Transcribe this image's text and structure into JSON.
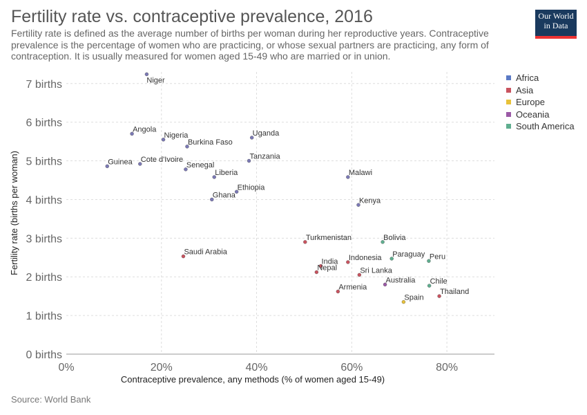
{
  "header": {
    "title": "Fertility rate vs. contraceptive prevalence, 2016",
    "subtitle": "Fertility rate is defined as the average number of births per woman during her reproductive years. Contraceptive prevalence is the percentage of women who are practicing, or whose sexual partners are practicing, any form of contraception. It is usually measured for women aged 15-49 who are married or in union.",
    "logo_line1": "Our World",
    "logo_line2": "in Data"
  },
  "footer": {
    "source": "Source: World Bank"
  },
  "colors": {
    "Africa": "#5b7ac5",
    "Asia": "#c9535f",
    "Europe": "#e8c23a",
    "Oceania": "#9b5aa6",
    "South America": "#5fae8f",
    "point_fill_Africa": "#7b79b5",
    "logo_bg": "#1a3a5e",
    "logo_accent": "#e33333",
    "grid": "#dddddd"
  },
  "chart_data": {
    "type": "scatter",
    "title": "Fertility rate vs. contraceptive prevalence, 2016",
    "xlabel": "Contraceptive prevalence, any methods (% of women aged 15-49)",
    "ylabel": "Fertility rate (births per woman)",
    "xlim": [
      0,
      90
    ],
    "ylim": [
      0,
      7.3
    ],
    "x_ticks": [
      0,
      20,
      40,
      60,
      80
    ],
    "x_tick_labels": [
      "0%",
      "20%",
      "40%",
      "60%",
      "80%"
    ],
    "y_ticks": [
      0,
      1,
      2,
      3,
      4,
      5,
      6,
      7
    ],
    "y_tick_labels": [
      "0 births",
      "1 births",
      "2 births",
      "3 births",
      "4 births",
      "5 births",
      "6 births",
      "7 births"
    ],
    "grid": true,
    "legend_position": "right",
    "legend": [
      "Africa",
      "Asia",
      "Europe",
      "Oceania",
      "South America"
    ],
    "points": [
      {
        "label": "Niger",
        "region": "Africa",
        "x": 16.9,
        "y": 7.24
      },
      {
        "label": "Angola",
        "region": "Africa",
        "x": 13.8,
        "y": 5.7
      },
      {
        "label": "Nigeria",
        "region": "Africa",
        "x": 20.4,
        "y": 5.55
      },
      {
        "label": "Burkina Faso",
        "region": "Africa",
        "x": 25.4,
        "y": 5.37
      },
      {
        "label": "Uganda",
        "region": "Africa",
        "x": 39.0,
        "y": 5.6
      },
      {
        "label": "Tanzania",
        "region": "Africa",
        "x": 38.4,
        "y": 5.0
      },
      {
        "label": "Guinea",
        "region": "Africa",
        "x": 8.6,
        "y": 4.86
      },
      {
        "label": "Cote d'Ivoire",
        "region": "Africa",
        "x": 15.5,
        "y": 4.92
      },
      {
        "label": "Senegal",
        "region": "Africa",
        "x": 25.1,
        "y": 4.78
      },
      {
        "label": "Liberia",
        "region": "Africa",
        "x": 31.1,
        "y": 4.58
      },
      {
        "label": "Ethiopia",
        "region": "Africa",
        "x": 35.8,
        "y": 4.2
      },
      {
        "label": "Ghana",
        "region": "Africa",
        "x": 30.6,
        "y": 4.0
      },
      {
        "label": "Malawi",
        "region": "Africa",
        "x": 59.2,
        "y": 4.58
      },
      {
        "label": "Kenya",
        "region": "Africa",
        "x": 61.4,
        "y": 3.86
      },
      {
        "label": "Turkmenistan",
        "region": "Asia",
        "x": 50.2,
        "y": 2.9
      },
      {
        "label": "Saudi Arabia",
        "region": "Asia",
        "x": 24.6,
        "y": 2.53
      },
      {
        "label": "India",
        "region": "Asia",
        "x": 53.5,
        "y": 2.28
      },
      {
        "label": "Nepal",
        "region": "Asia",
        "x": 52.6,
        "y": 2.12
      },
      {
        "label": "Indonesia",
        "region": "Asia",
        "x": 59.2,
        "y": 2.38
      },
      {
        "label": "Sri Lanka",
        "region": "Asia",
        "x": 61.6,
        "y": 2.05
      },
      {
        "label": "Armenia",
        "region": "Asia",
        "x": 57.1,
        "y": 1.62
      },
      {
        "label": "Thailand",
        "region": "Asia",
        "x": 78.4,
        "y": 1.5
      },
      {
        "label": "Bolivia",
        "region": "South America",
        "x": 66.5,
        "y": 2.9
      },
      {
        "label": "Paraguay",
        "region": "South America",
        "x": 68.4,
        "y": 2.47
      },
      {
        "label": "Peru",
        "region": "South America",
        "x": 76.2,
        "y": 2.41
      },
      {
        "label": "Chile",
        "region": "South America",
        "x": 76.3,
        "y": 1.77
      },
      {
        "label": "Australia",
        "region": "Oceania",
        "x": 67.0,
        "y": 1.8
      },
      {
        "label": "Spain",
        "region": "Europe",
        "x": 70.9,
        "y": 1.35
      }
    ]
  }
}
